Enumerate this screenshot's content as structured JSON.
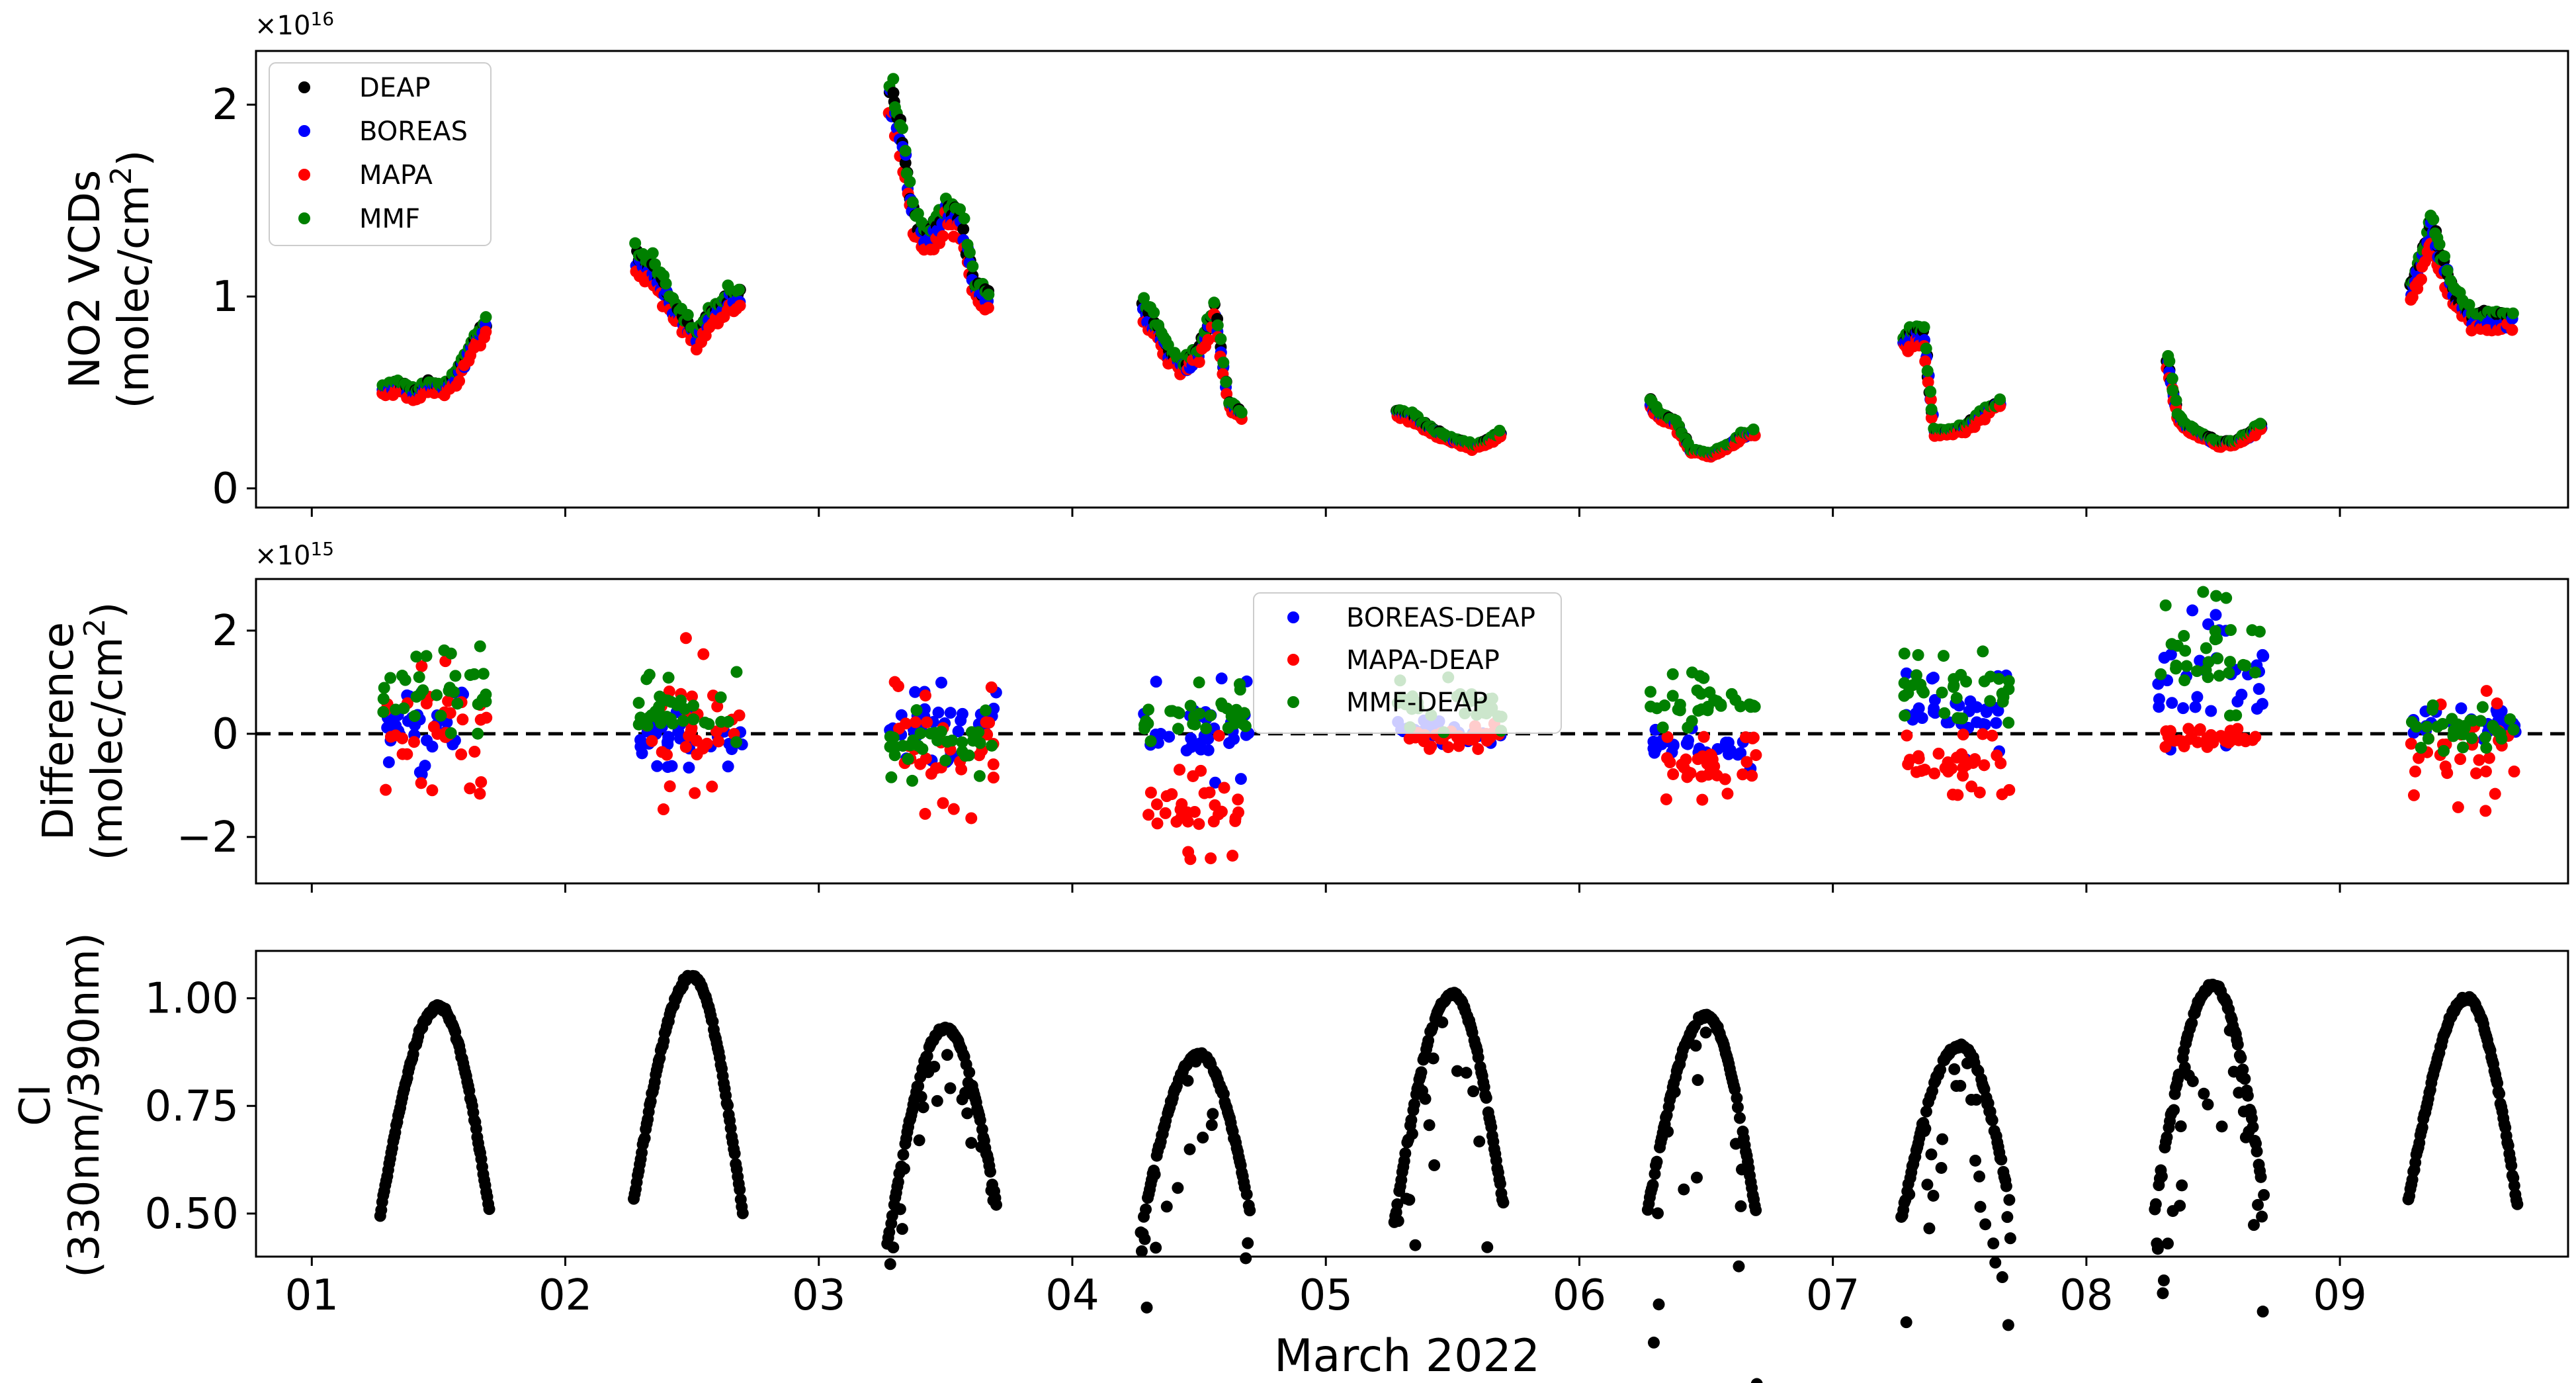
{
  "chart_data": [
    {
      "type": "scatter",
      "panel": "top",
      "ylabel_line1": "NO2 VCDs",
      "ylabel_line2_prefix": "(molec/cm",
      "ylabel_line2_sup": "2",
      "ylabel_line2_suffix": ")",
      "exponent_base": "×10",
      "exponent_power": "16",
      "ylim": [
        -0.1,
        2.28
      ],
      "yticks": [
        0,
        1,
        2
      ],
      "ytick_labels": [
        "0",
        "1",
        "2"
      ],
      "legend_position": "top-left",
      "series": [
        {
          "name": "DEAP",
          "color": "#000000"
        },
        {
          "name": "BOREAS",
          "color": "#0000ff"
        },
        {
          "name": "MAPA",
          "color": "#ff0000"
        },
        {
          "name": "MMF",
          "color": "#008000"
        }
      ],
      "day_profiles": [
        {
          "day": 1,
          "pts": [
            [
              1.28,
              0.52
            ],
            [
              1.34,
              0.55
            ],
            [
              1.4,
              0.5
            ],
            [
              1.46,
              0.55
            ],
            [
              1.52,
              0.52
            ],
            [
              1.58,
              0.62
            ],
            [
              1.64,
              0.78
            ],
            [
              1.7,
              0.88
            ]
          ]
        },
        {
          "day": 2,
          "pts": [
            [
              2.28,
              1.22
            ],
            [
              2.34,
              1.18
            ],
            [
              2.4,
              1.02
            ],
            [
              2.46,
              0.9
            ],
            [
              2.52,
              0.8
            ],
            [
              2.58,
              0.92
            ],
            [
              2.64,
              1.0
            ],
            [
              2.7,
              1.02
            ]
          ]
        },
        {
          "day": 3,
          "pts": [
            [
              3.28,
              2.1
            ],
            [
              3.33,
              1.8
            ],
            [
              3.38,
              1.38
            ],
            [
              3.44,
              1.32
            ],
            [
              3.5,
              1.48
            ],
            [
              3.56,
              1.42
            ],
            [
              3.62,
              1.05
            ],
            [
              3.68,
              1.0
            ]
          ]
        },
        {
          "day": 4,
          "pts": [
            [
              4.28,
              0.95
            ],
            [
              4.33,
              0.85
            ],
            [
              4.38,
              0.72
            ],
            [
              4.44,
              0.65
            ],
            [
              4.5,
              0.72
            ],
            [
              4.56,
              0.95
            ],
            [
              4.62,
              0.45
            ],
            [
              4.68,
              0.38
            ]
          ]
        },
        {
          "day": 5,
          "pts": [
            [
              5.28,
              0.4
            ],
            [
              5.34,
              0.38
            ],
            [
              5.4,
              0.32
            ],
            [
              5.46,
              0.28
            ],
            [
              5.52,
              0.25
            ],
            [
              5.58,
              0.22
            ],
            [
              5.64,
              0.25
            ],
            [
              5.7,
              0.3
            ]
          ]
        },
        {
          "day": 6,
          "pts": [
            [
              6.28,
              0.45
            ],
            [
              6.32,
              0.38
            ],
            [
              6.38,
              0.35
            ],
            [
              6.44,
              0.2
            ],
            [
              6.52,
              0.18
            ],
            [
              6.58,
              0.22
            ],
            [
              6.64,
              0.28
            ],
            [
              6.7,
              0.3
            ]
          ]
        },
        {
          "day": 7,
          "pts": [
            [
              7.28,
              0.78
            ],
            [
              7.32,
              0.82
            ],
            [
              7.36,
              0.8
            ],
            [
              7.4,
              0.3
            ],
            [
              7.46,
              0.3
            ],
            [
              7.52,
              0.32
            ],
            [
              7.58,
              0.38
            ],
            [
              7.68,
              0.48
            ]
          ]
        },
        {
          "day": 8,
          "pts": [
            [
              8.32,
              0.68
            ],
            [
              8.36,
              0.38
            ],
            [
              8.4,
              0.32
            ],
            [
              8.46,
              0.28
            ],
            [
              8.52,
              0.24
            ],
            [
              8.58,
              0.24
            ],
            [
              8.64,
              0.28
            ],
            [
              8.7,
              0.34
            ]
          ]
        },
        {
          "day": 9,
          "pts": [
            [
              9.28,
              1.05
            ],
            [
              9.32,
              1.2
            ],
            [
              9.36,
              1.38
            ],
            [
              9.4,
              1.2
            ],
            [
              9.46,
              1.0
            ],
            [
              9.52,
              0.9
            ],
            [
              9.6,
              0.9
            ],
            [
              9.7,
              0.9
            ]
          ]
        }
      ]
    },
    {
      "type": "scatter",
      "panel": "middle",
      "ylabel_line1": "Difference",
      "ylabel_line2_prefix": "(molec/cm",
      "ylabel_line2_sup": "2",
      "ylabel_line2_suffix": ")",
      "exponent_base": "×10",
      "exponent_power": "15",
      "ylim": [
        -2.9,
        3.0
      ],
      "yticks": [
        -2,
        0,
        2
      ],
      "ytick_labels": [
        "−2",
        "0",
        "2"
      ],
      "reference_line": {
        "y": 0,
        "style": "dashed"
      },
      "legend_position": "upper-center",
      "series": [
        {
          "name": "BOREAS-DEAP",
          "color": "#0000ff"
        },
        {
          "name": "MAPA-DEAP",
          "color": "#ff0000"
        },
        {
          "name": "MMF-DEAP",
          "color": "#008000"
        }
      ],
      "day_ranges": [
        {
          "day": 1,
          "BOREAS-DEAP": [
            -0.8,
            0.9
          ],
          "MAPA-DEAP": [
            -1.3,
            1.7
          ],
          "MMF-DEAP": [
            -0.3,
            1.8
          ]
        },
        {
          "day": 2,
          "BOREAS-DEAP": [
            -0.8,
            0.6
          ],
          "MAPA-DEAP": [
            -1.5,
            1.9
          ],
          "MMF-DEAP": [
            -0.3,
            1.2
          ]
        },
        {
          "day": 3,
          "BOREAS-DEAP": [
            -0.6,
            1.0
          ],
          "MAPA-DEAP": [
            -1.7,
            1.1
          ],
          "MMF-DEAP": [
            -1.0,
            0.5
          ]
        },
        {
          "day": 4,
          "BOREAS-DEAP": [
            -1.0,
            1.1
          ],
          "MAPA-DEAP": [
            -2.6,
            0.2
          ],
          "MMF-DEAP": [
            -0.3,
            1.0
          ]
        },
        {
          "day": 5,
          "BOREAS-DEAP": [
            -0.2,
            0.3
          ],
          "MAPA-DEAP": [
            -0.3,
            0.2
          ],
          "MMF-DEAP": [
            0.0,
            1.1
          ]
        },
        {
          "day": 6,
          "BOREAS-DEAP": [
            -0.7,
            0.2
          ],
          "MAPA-DEAP": [
            -1.3,
            0.0
          ],
          "MMF-DEAP": [
            0.1,
            1.2
          ]
        },
        {
          "day": 7,
          "BOREAS-DEAP": [
            -0.5,
            1.2
          ],
          "MAPA-DEAP": [
            -1.2,
            0.0
          ],
          "MMF-DEAP": [
            0.2,
            1.6
          ]
        },
        {
          "day": 8,
          "BOREAS-DEAP": [
            -0.4,
            2.4
          ],
          "MAPA-DEAP": [
            -0.3,
            0.1
          ],
          "MMF-DEAP": [
            0.2,
            2.8
          ]
        },
        {
          "day": 9,
          "BOREAS-DEAP": [
            -0.2,
            0.5
          ],
          "MAPA-DEAP": [
            -1.5,
            0.9
          ],
          "MMF-DEAP": [
            -0.4,
            0.6
          ]
        }
      ]
    },
    {
      "type": "scatter",
      "panel": "bottom",
      "ylabel_line1": "CI",
      "ylabel_line2": "(330nm/390nm)",
      "ylim": [
        0.4,
        1.11
      ],
      "yticks": [
        0.5,
        0.75,
        1.0
      ],
      "ytick_labels": [
        "0.50",
        "0.75",
        "1.00"
      ],
      "series": [
        {
          "name": "CI",
          "color": "#000000"
        }
      ],
      "xlim": [
        0.78,
        9.9
      ],
      "xticks": [
        1,
        2,
        3,
        4,
        5,
        6,
        7,
        8,
        9
      ],
      "xtick_labels": [
        "01",
        "02",
        "03",
        "04",
        "05",
        "06",
        "07",
        "08",
        "09"
      ],
      "xlabel": "March 2022",
      "day_arcs": [
        {
          "day": 1,
          "peak": 0.98,
          "start": 0.5,
          "end": 0.51,
          "noise": 0.0
        },
        {
          "day": 2,
          "peak": 1.05,
          "start": 0.53,
          "end": 0.5,
          "noise": 0.0
        },
        {
          "day": 3,
          "peak": 0.93,
          "start": 0.43,
          "end": 0.52,
          "noise": 0.1
        },
        {
          "day": 4,
          "peak": 0.87,
          "start": 0.46,
          "end": 0.51,
          "noise": 0.18
        },
        {
          "day": 5,
          "peak": 1.01,
          "start": 0.48,
          "end": 0.52,
          "noise": 0.22
        },
        {
          "day": 6,
          "peak": 0.96,
          "start": 0.51,
          "end": 0.49,
          "noise": 0.25
        },
        {
          "day": 7,
          "peak": 0.89,
          "start": 0.49,
          "end": 0.52,
          "noise": 0.2
        },
        {
          "day": 8,
          "peak": 1.03,
          "start": 0.51,
          "end": 0.54,
          "noise": 0.2
        },
        {
          "day": 9,
          "peak": 1.0,
          "start": 0.53,
          "end": 0.52,
          "noise": 0.0
        }
      ]
    }
  ]
}
